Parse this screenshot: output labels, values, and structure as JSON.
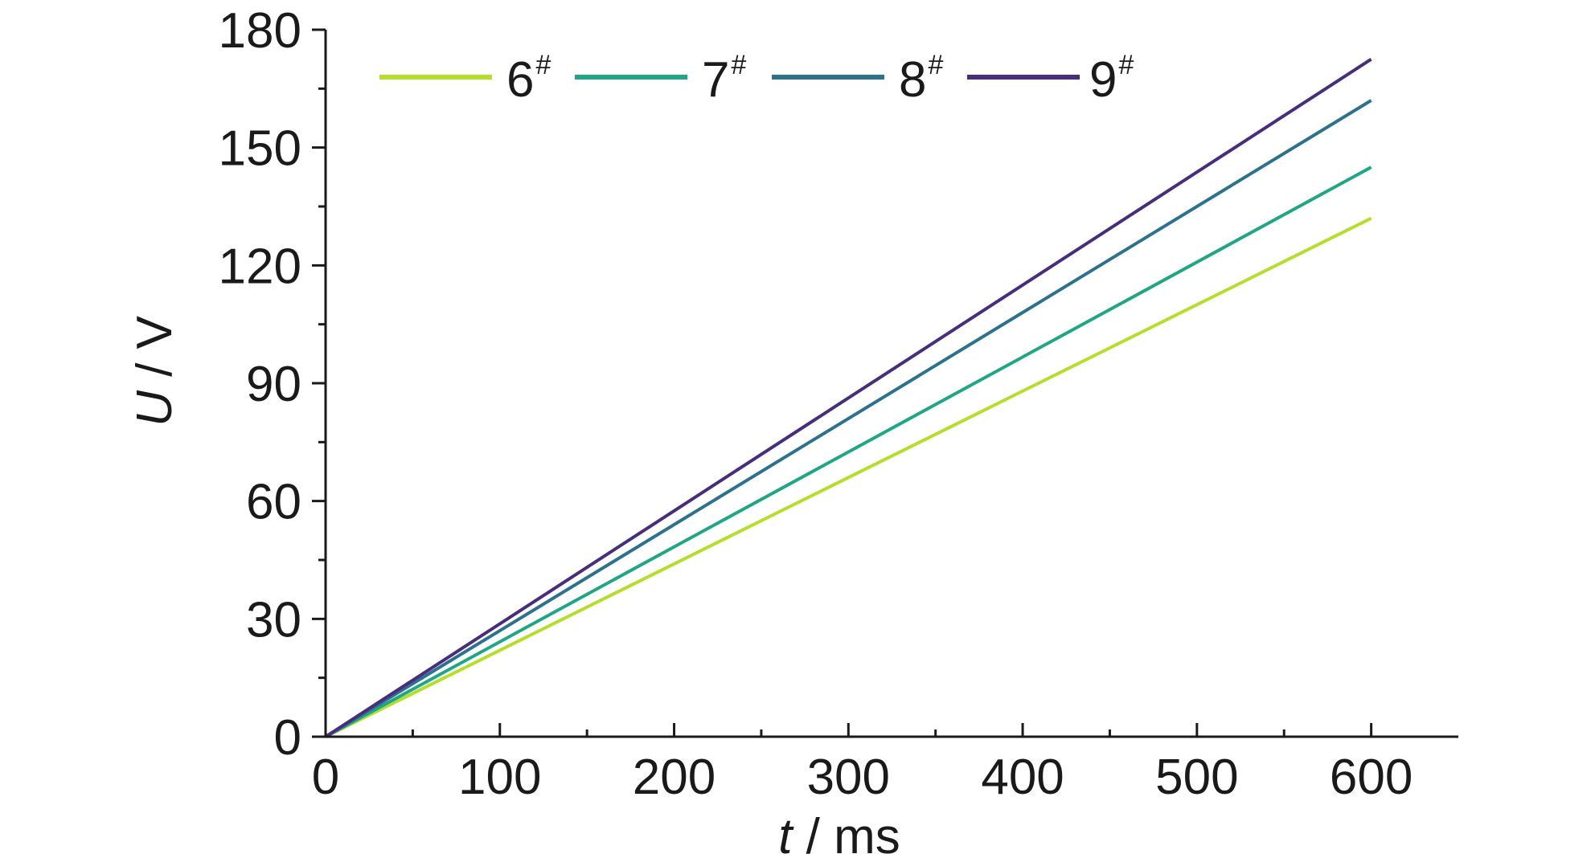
{
  "chart_data": {
    "type": "line",
    "xlabel_var": "t",
    "xlabel_unit": " / ms",
    "ylabel_var": "U",
    "ylabel_unit": " / V",
    "xlim": [
      0,
      650
    ],
    "ylim": [
      0,
      180
    ],
    "x_ticks": [
      0,
      100,
      200,
      300,
      400,
      500,
      600
    ],
    "y_ticks": [
      0,
      30,
      60,
      90,
      120,
      150,
      180
    ],
    "x_minor_step": 50,
    "y_minor_step": 15,
    "grid": false,
    "legend_position": "top",
    "series": [
      {
        "name": "6",
        "name_sup": "#",
        "color": "#b5de2b",
        "x": [
          0,
          600
        ],
        "y": [
          0,
          132
        ]
      },
      {
        "name": "7",
        "name_sup": "#",
        "color": "#21a685",
        "x": [
          0,
          600
        ],
        "y": [
          0,
          145
        ]
      },
      {
        "name": "8",
        "name_sup": "#",
        "color": "#2c728e",
        "x": [
          0,
          600
        ],
        "y": [
          0,
          162
        ]
      },
      {
        "name": "9",
        "name_sup": "#",
        "color": "#472d7b",
        "x": [
          0,
          600
        ],
        "y": [
          0,
          172.5
        ]
      }
    ]
  }
}
